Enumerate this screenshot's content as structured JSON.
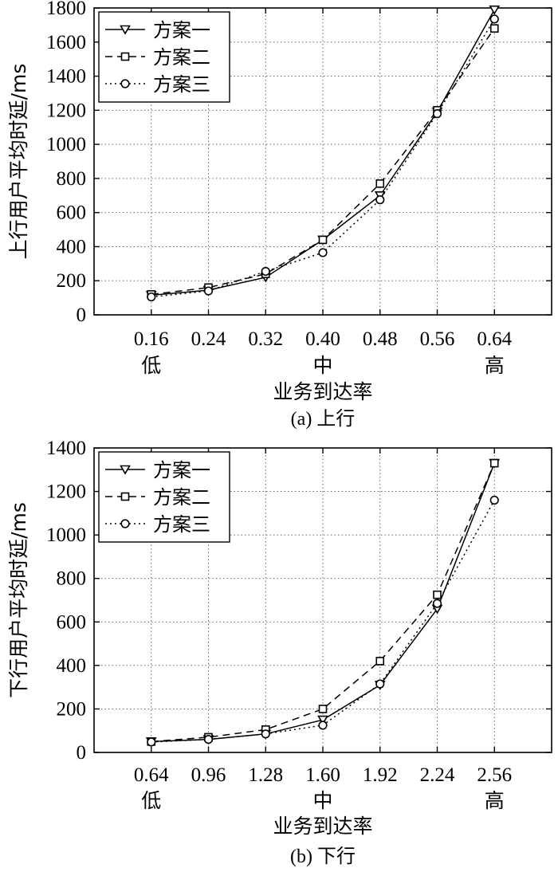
{
  "chart_data": [
    {
      "type": "line",
      "caption": "(a) 上行",
      "xlabel": "业务到达率",
      "ylabel": "上行用户平均时延/ms",
      "categories": [
        "0.16",
        "0.24",
        "0.32",
        "0.40",
        "0.48",
        "0.56",
        "0.64"
      ],
      "level_labels": [
        {
          "index": 0,
          "text": "低"
        },
        {
          "index": 3,
          "text": "中"
        },
        {
          "index": 6,
          "text": "高"
        }
      ],
      "ylim": [
        0,
        1800
      ],
      "yticks": [
        0,
        200,
        400,
        600,
        800,
        1000,
        1200,
        1400,
        1600,
        1800
      ],
      "grid": true,
      "legend_position": "top-left",
      "series": [
        {
          "name": "方案一",
          "marker": "triangle-down",
          "dash": "solid",
          "values": [
            115,
            145,
            220,
            440,
            700,
            1190,
            1790
          ]
        },
        {
          "name": "方案二",
          "marker": "square",
          "dash": "dashed",
          "values": [
            120,
            160,
            240,
            440,
            770,
            1200,
            1680
          ]
        },
        {
          "name": "方案三",
          "marker": "circle",
          "dash": "dotted",
          "values": [
            105,
            140,
            255,
            365,
            675,
            1180,
            1735
          ]
        }
      ]
    },
    {
      "type": "line",
      "caption": "(b) 下行",
      "xlabel": "业务到达率",
      "ylabel": "下行用户平均时延/ms",
      "categories": [
        "0.64",
        "0.96",
        "1.28",
        "1.60",
        "1.92",
        "2.24",
        "2.56"
      ],
      "level_labels": [
        {
          "index": 0,
          "text": "低"
        },
        {
          "index": 3,
          "text": "中"
        },
        {
          "index": 6,
          "text": "高"
        }
      ],
      "ylim": [
        0,
        1400
      ],
      "yticks": [
        0,
        200,
        400,
        600,
        800,
        1000,
        1200,
        1400
      ],
      "grid": true,
      "legend_position": "top-left",
      "series": [
        {
          "name": "方案一",
          "marker": "triangle-down",
          "dash": "solid",
          "values": [
            50,
            60,
            85,
            150,
            310,
            660,
            1330
          ]
        },
        {
          "name": "方案二",
          "marker": "square",
          "dash": "dashed",
          "values": [
            50,
            70,
            105,
            200,
            420,
            725,
            1330
          ]
        },
        {
          "name": "方案三",
          "marker": "circle",
          "dash": "dotted",
          "values": [
            48,
            60,
            85,
            125,
            315,
            685,
            1160
          ]
        }
      ]
    }
  ]
}
